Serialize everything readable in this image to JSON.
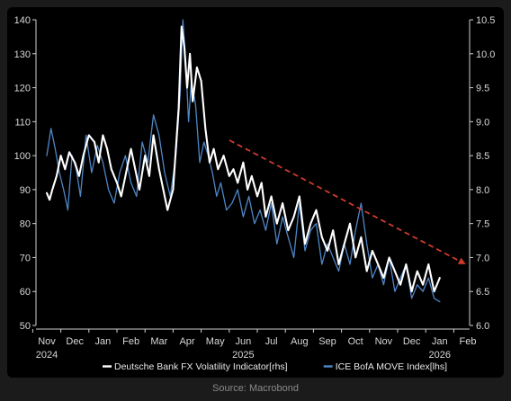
{
  "source_note": "Source: Macrobond",
  "colors": {
    "background": "#000000",
    "page": "#1b1b1b",
    "deutsche_bank_series": "#ffffff",
    "move_series": "#4f86c6",
    "trend_arrow": "#d03a2c",
    "tick_text": "#d8d8d8"
  },
  "chart_data": {
    "type": "line",
    "title": "",
    "xlabel": "",
    "legend_placement": "bottom-center",
    "grid": false,
    "x_ticks": [
      "Nov",
      "Dec",
      "Jan",
      "Feb",
      "Mar",
      "Apr",
      "May",
      "Jun",
      "Jul",
      "Aug",
      "Sep",
      "Oct",
      "Nov",
      "Dec",
      "Jan",
      "Feb"
    ],
    "x_year_labels": [
      {
        "label": "2024",
        "under": "Nov"
      },
      {
        "label": "2025",
        "under": "Jun"
      },
      {
        "label": "2026",
        "under": "Jan"
      }
    ],
    "x_range": [
      "2024-11",
      "2026-02"
    ],
    "y_left": {
      "label": "",
      "range": [
        50,
        140
      ],
      "ticks": [
        50,
        60,
        70,
        80,
        90,
        100,
        110,
        120,
        130,
        140
      ]
    },
    "y_right": {
      "label": "",
      "range": [
        6.0,
        10.5
      ],
      "ticks": [
        "6.0",
        "6.5",
        "7.0",
        "7.5",
        "8.0",
        "8.5",
        "9.0",
        "9.5",
        "10.0",
        "10.5"
      ]
    },
    "series": [
      {
        "name": "Deutsche Bank FX Volatility Indicator[rhs]",
        "axis": "right",
        "color": "#ffffff",
        "x": [
          0.0,
          0.1,
          0.2,
          0.35,
          0.5,
          0.65,
          0.8,
          1.0,
          1.15,
          1.3,
          1.5,
          1.7,
          1.85,
          2.0,
          2.15,
          2.3,
          2.5,
          2.65,
          2.8,
          3.0,
          3.15,
          3.3,
          3.5,
          3.65,
          3.8,
          4.0,
          4.15,
          4.3,
          4.5,
          4.6,
          4.7,
          4.8,
          4.9,
          5.0,
          5.1,
          5.2,
          5.35,
          5.5,
          5.65,
          5.8,
          5.95,
          6.1,
          6.3,
          6.5,
          6.65,
          6.8,
          7.0,
          7.15,
          7.3,
          7.5,
          7.65,
          7.8,
          8.0,
          8.2,
          8.4,
          8.6,
          8.8,
          9.0,
          9.2,
          9.4,
          9.6,
          9.8,
          10.0,
          10.2,
          10.4,
          10.6,
          10.8,
          11.0,
          11.2,
          11.4,
          11.6,
          11.8,
          12.0,
          12.2,
          12.4,
          12.6,
          12.8,
          13.0,
          13.2,
          13.4,
          13.6,
          13.8,
          14.0
        ],
        "values": [
          7.95,
          7.85,
          8.0,
          8.2,
          8.5,
          8.3,
          8.55,
          8.4,
          8.2,
          8.5,
          8.8,
          8.7,
          8.4,
          8.8,
          8.6,
          8.3,
          8.1,
          7.9,
          8.2,
          8.6,
          8.3,
          8.0,
          8.5,
          8.2,
          8.8,
          8.3,
          8.0,
          7.7,
          8.0,
          8.6,
          9.2,
          10.4,
          10.1,
          9.5,
          10.0,
          9.3,
          9.8,
          9.6,
          8.9,
          8.4,
          8.6,
          8.3,
          8.5,
          8.2,
          8.3,
          8.1,
          8.4,
          8.0,
          8.2,
          7.9,
          8.1,
          7.6,
          7.9,
          7.5,
          7.8,
          7.4,
          7.6,
          7.9,
          7.2,
          7.5,
          7.7,
          7.3,
          7.1,
          7.4,
          6.9,
          7.2,
          7.5,
          7.0,
          7.3,
          6.8,
          7.1,
          6.9,
          6.7,
          7.0,
          6.8,
          6.6,
          6.9,
          6.5,
          6.8,
          6.6,
          6.9,
          6.5,
          6.7
        ]
      },
      {
        "name": "ICE BofA MOVE Index[lhs]",
        "axis": "left",
        "color": "#4f86c6",
        "x": [
          0.0,
          0.15,
          0.3,
          0.45,
          0.6,
          0.75,
          0.9,
          1.05,
          1.2,
          1.4,
          1.6,
          1.8,
          2.0,
          2.2,
          2.4,
          2.6,
          2.8,
          3.0,
          3.2,
          3.4,
          3.6,
          3.8,
          4.0,
          4.2,
          4.4,
          4.6,
          4.75,
          4.85,
          4.95,
          5.05,
          5.15,
          5.3,
          5.45,
          5.6,
          5.75,
          5.9,
          6.05,
          6.2,
          6.4,
          6.6,
          6.8,
          7.0,
          7.2,
          7.4,
          7.6,
          7.8,
          8.0,
          8.2,
          8.4,
          8.6,
          8.8,
          9.0,
          9.2,
          9.4,
          9.6,
          9.8,
          10.0,
          10.2,
          10.4,
          10.6,
          10.8,
          11.0,
          11.2,
          11.4,
          11.6,
          11.8,
          12.0,
          12.2,
          12.4,
          12.6,
          12.8,
          13.0,
          13.2,
          13.4,
          13.6,
          13.8,
          14.0
        ],
        "values": [
          100,
          108,
          102,
          95,
          90,
          84,
          100,
          96,
          88,
          106,
          95,
          103,
          98,
          90,
          86,
          95,
          100,
          92,
          88,
          104,
          98,
          112,
          106,
          95,
          88,
          100,
          118,
          140,
          128,
          110,
          122,
          115,
          98,
          104,
          100,
          95,
          88,
          92,
          84,
          86,
          90,
          82,
          88,
          80,
          84,
          78,
          86,
          74,
          82,
          76,
          70,
          86,
          72,
          78,
          80,
          68,
          74,
          70,
          66,
          74,
          68,
          78,
          86,
          74,
          64,
          68,
          62,
          70,
          60,
          64,
          68,
          58,
          62,
          60,
          64,
          58,
          57
        ]
      }
    ],
    "annotation": {
      "type": "trend-arrow",
      "style": "dashed",
      "color": "#d03a2c"
    }
  }
}
